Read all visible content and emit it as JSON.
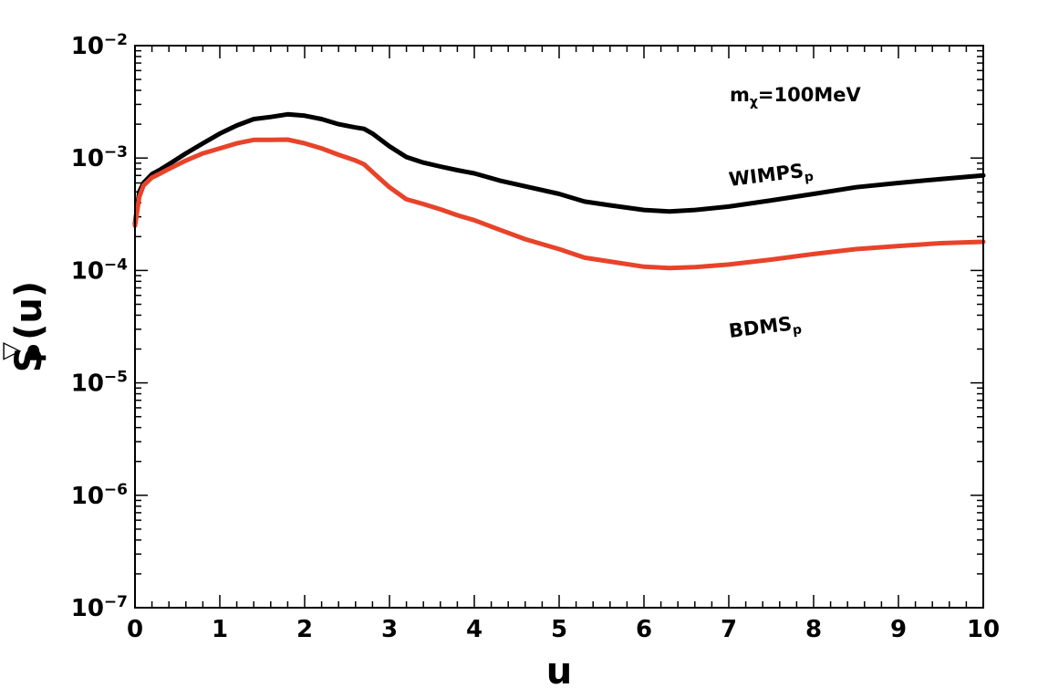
{
  "chart_data": {
    "type": "line",
    "xlabel": "u",
    "ylabel": {
      "main": "S",
      "sub": "P",
      "sup": "▽",
      "tail": "(u)"
    },
    "xlim": [
      0,
      10
    ],
    "ylim": [
      1e-07,
      0.01
    ],
    "yscale": "log",
    "grid": false,
    "x_ticks": [
      "0",
      "1",
      "2",
      "3",
      "4",
      "5",
      "6",
      "7",
      "8",
      "9",
      "10"
    ],
    "y_ticks": [
      {
        "base": "10",
        "exp": "−7",
        "value": 1e-07
      },
      {
        "base": "10",
        "exp": "−6",
        "value": 1e-06
      },
      {
        "base": "10",
        "exp": "−5",
        "value": 1e-05
      },
      {
        "base": "10",
        "exp": "−4",
        "value": 0.0001
      },
      {
        "base": "10",
        "exp": "−3",
        "value": 0.001
      },
      {
        "base": "10",
        "exp": "−2",
        "value": 0.01
      }
    ],
    "annotations": {
      "mass": {
        "main": "m",
        "sub": "χ",
        "tail": "=100MeV"
      },
      "wimps": {
        "main": "WIMPS",
        "sub": "p"
      },
      "bdms": {
        "main": "BDMS",
        "sub": "p"
      }
    },
    "series": [
      {
        "label_ref": "WIMPS_p",
        "color": "#000000",
        "x": [
          0,
          0.05,
          0.1,
          0.2,
          0.3,
          0.4,
          0.6,
          0.8,
          1.0,
          1.2,
          1.4,
          1.6,
          1.8,
          2.0,
          2.2,
          2.4,
          2.6,
          2.7,
          2.8,
          3.0,
          3.2,
          3.4,
          3.6,
          3.8,
          4.0,
          4.3,
          4.6,
          5.0,
          5.3,
          5.6,
          6.0,
          6.3,
          6.6,
          7.0,
          7.5,
          8.0,
          8.5,
          9.0,
          9.5,
          10.0
        ],
        "y": [
          0.00026,
          0.0005,
          0.0006,
          0.00072,
          0.00079,
          0.00088,
          0.0011,
          0.00135,
          0.00165,
          0.00195,
          0.00222,
          0.00232,
          0.00245,
          0.00238,
          0.00222,
          0.002,
          0.00187,
          0.00182,
          0.00165,
          0.00127,
          0.00102,
          0.00091,
          0.00084,
          0.00078,
          0.00073,
          0.00063,
          0.00056,
          0.00048,
          0.00041,
          0.00038,
          0.000345,
          0.000335,
          0.000345,
          0.00037,
          0.00042,
          0.00048,
          0.00055,
          0.0006,
          0.00065,
          0.0007
        ]
      },
      {
        "label_ref": "BDMS_p",
        "color": "#e8432a",
        "x": [
          0,
          0.05,
          0.1,
          0.2,
          0.3,
          0.4,
          0.6,
          0.8,
          1.0,
          1.2,
          1.4,
          1.6,
          1.8,
          2.0,
          2.2,
          2.4,
          2.6,
          2.7,
          2.8,
          3.0,
          3.2,
          3.4,
          3.6,
          3.8,
          4.0,
          4.3,
          4.6,
          5.0,
          5.3,
          5.6,
          6.0,
          6.3,
          6.6,
          7.0,
          7.5,
          8.0,
          8.5,
          9.0,
          9.5,
          10.0
        ],
        "y": [
          0.00025,
          0.00045,
          0.00057,
          0.00067,
          0.00073,
          0.0008,
          0.00095,
          0.0011,
          0.00122,
          0.00135,
          0.00145,
          0.00145,
          0.00146,
          0.00135,
          0.00122,
          0.00107,
          0.00095,
          0.00088,
          0.00075,
          0.00055,
          0.00043,
          0.00039,
          0.00035,
          0.00031,
          0.00028,
          0.00023,
          0.00019,
          0.000155,
          0.00013,
          0.00012,
          0.000108,
          0.000105,
          0.000107,
          0.000113,
          0.000125,
          0.00014,
          0.000155,
          0.000165,
          0.000175,
          0.00018
        ]
      }
    ]
  }
}
